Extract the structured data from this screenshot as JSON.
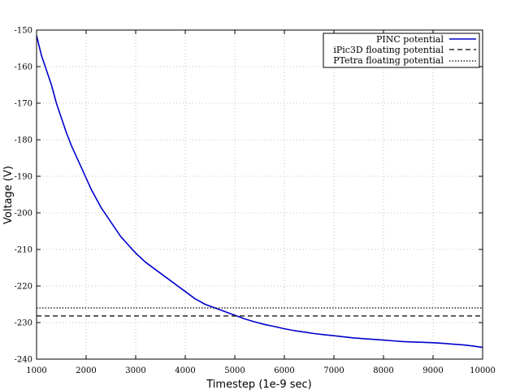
{
  "chart_data": {
    "type": "line",
    "title": "",
    "xlabel": "Timestep (1e-9 sec)",
    "ylabel": "Voltage (V)",
    "xlim": [
      1000,
      10000
    ],
    "ylim": [
      -240,
      -150
    ],
    "x_ticks": [
      1000,
      2000,
      3000,
      4000,
      5000,
      6000,
      7000,
      8000,
      9000,
      10000
    ],
    "y_ticks": [
      -150,
      -160,
      -170,
      -180,
      -190,
      -200,
      -210,
      -220,
      -230,
      -240
    ],
    "grid": true,
    "legend_position": "top-right",
    "series": [
      {
        "name": "PINC potential",
        "color": "#0000cc",
        "style": "solid",
        "x": [
          1000,
          1100,
          1200,
          1300,
          1400,
          1500,
          1600,
          1700,
          1800,
          1900,
          2000,
          2100,
          2200,
          2300,
          2400,
          2500,
          2600,
          2700,
          2800,
          2900,
          3000,
          3200,
          3400,
          3600,
          3800,
          4000,
          4200,
          4400,
          4600,
          4800,
          5000,
          5200,
          5400,
          5600,
          5800,
          6000,
          6200,
          6400,
          6600,
          6800,
          7000,
          7200,
          7400,
          7600,
          7800,
          8000,
          8200,
          8400,
          8600,
          8800,
          9000,
          9200,
          9400,
          9600,
          9800,
          10000
        ],
        "values": [
          -151.5,
          -157,
          -161,
          -165,
          -170,
          -174,
          -178,
          -181.5,
          -184.5,
          -187.5,
          -190.5,
          -193.5,
          -196,
          -198.5,
          -200.5,
          -202.5,
          -204.5,
          -206.5,
          -208,
          -209.5,
          -211,
          -213.5,
          -215.5,
          -217.5,
          -219.5,
          -221.5,
          -223.5,
          -225,
          -226,
          -227,
          -228,
          -229,
          -229.8,
          -230.5,
          -231.1,
          -231.7,
          -232.2,
          -232.6,
          -233,
          -233.3,
          -233.6,
          -233.9,
          -234.2,
          -234.4,
          -234.6,
          -234.8,
          -235,
          -235.2,
          -235.3,
          -235.4,
          -235.5,
          -235.7,
          -235.9,
          -236.1,
          -236.4,
          -236.8
        ]
      },
      {
        "name": "iPic3D floating potential",
        "color": "#000000",
        "style": "dashed",
        "x": [
          1000,
          10000
        ],
        "values": [
          -228.2,
          -228.2
        ]
      },
      {
        "name": "PTetra floating potential",
        "color": "#000000",
        "style": "dotted",
        "x": [
          1000,
          10000
        ],
        "values": [
          -226,
          -226
        ]
      }
    ]
  }
}
